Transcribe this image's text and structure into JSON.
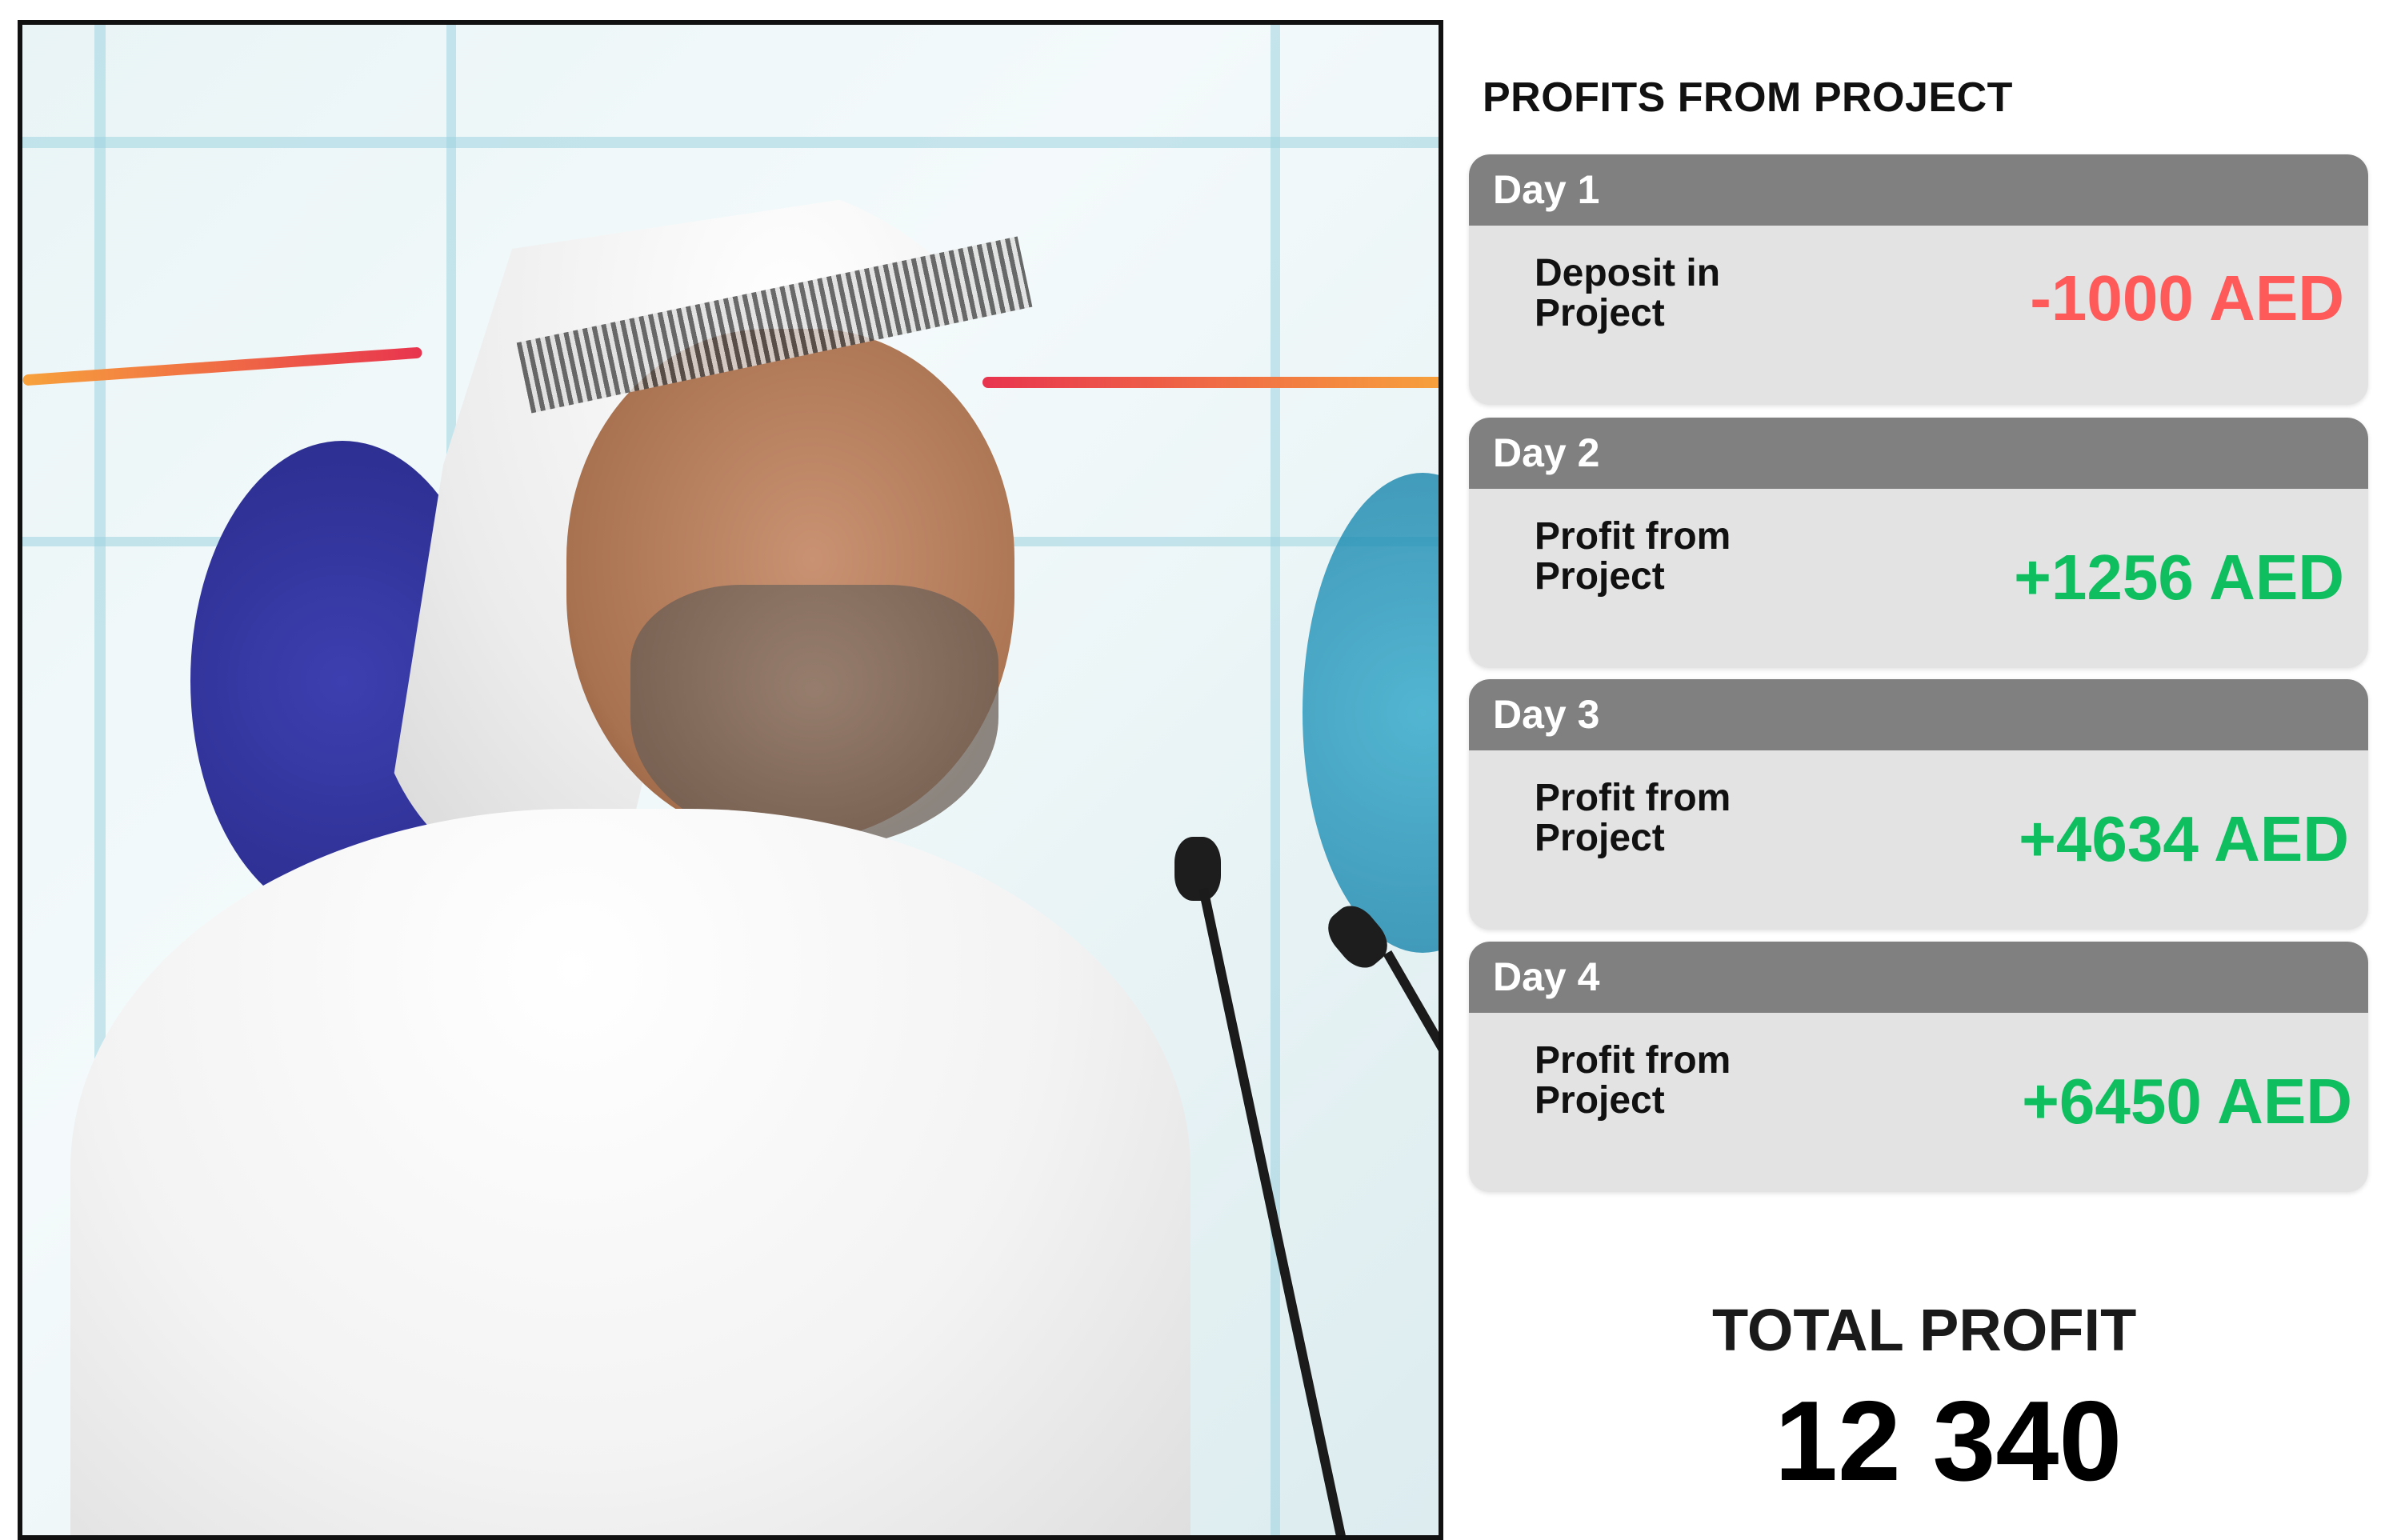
{
  "photo": {
    "subject": "speaker-photo"
  },
  "panel": {
    "title": "PROFITS FROM PROJECT",
    "entries": [
      {
        "day": "Day 1",
        "label": "Deposit in Project",
        "amount": "-1000 AED",
        "type": "negative"
      },
      {
        "day": "Day 2",
        "label": "Profit from Project",
        "amount": "+1256 AED",
        "type": "positive"
      },
      {
        "day": "Day 3",
        "label": "Profit from Project",
        "amount": "+4634 AED",
        "type": "positive"
      },
      {
        "day": "Day 4",
        "label": "Profit from Project",
        "amount": "+6450 AED",
        "type": "positive"
      }
    ],
    "total_label": "TOTAL PROFIT",
    "total_value": "12 340"
  },
  "colors": {
    "negative": "#ff5a5a",
    "positive": "#0fbf5f",
    "card_header": "#808080",
    "card_body": "#e3e3e3"
  }
}
